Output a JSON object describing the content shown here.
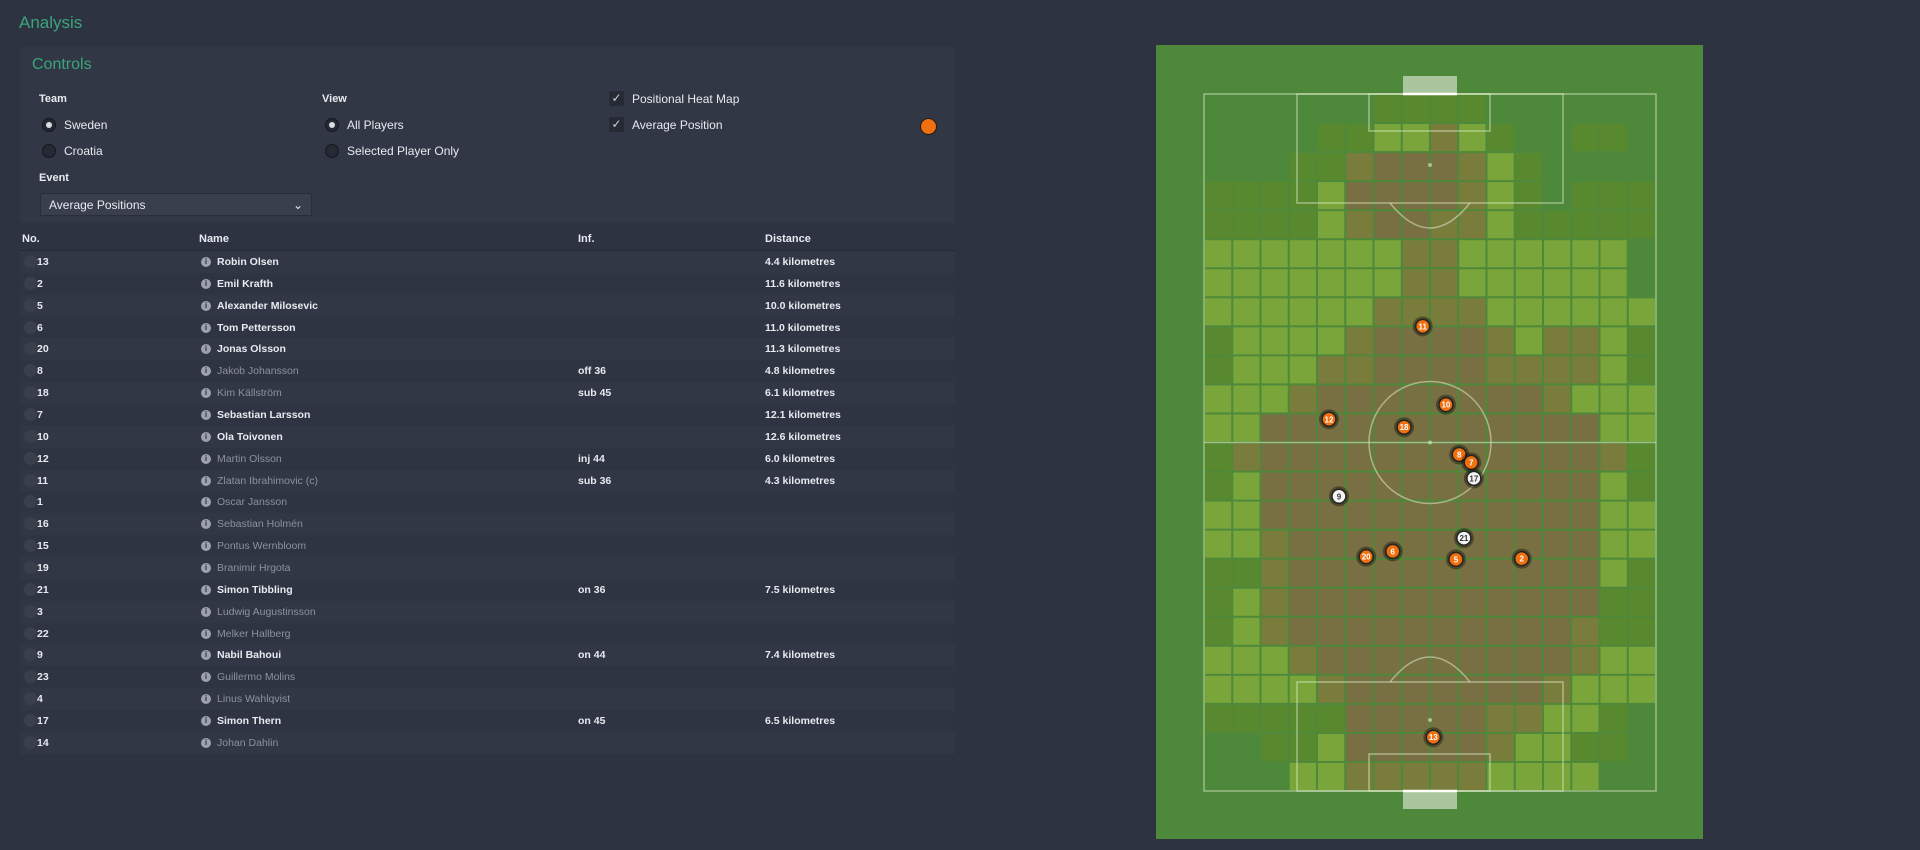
{
  "page": {
    "title": "Analysis"
  },
  "controls": {
    "title": "Controls",
    "team_label": "Team",
    "teams": [
      {
        "label": "Sweden",
        "selected": true
      },
      {
        "label": "Croatia",
        "selected": false
      }
    ],
    "view_label": "View",
    "views": [
      {
        "label": "All Players",
        "selected": true
      },
      {
        "label": "Selected Player Only",
        "selected": false
      }
    ],
    "options": [
      {
        "label": "Positional Heat Map",
        "checked": true
      },
      {
        "label": "Average Position",
        "checked": true
      }
    ],
    "event_label": "Event",
    "event_value": "Average Positions",
    "team_color": "#f07010"
  },
  "table": {
    "headers": {
      "no": "No.",
      "name": "Name",
      "inf": "Inf.",
      "distance": "Distance"
    },
    "rows": [
      {
        "no": "13",
        "name": "Robin Olsen",
        "inf": "",
        "distance": "4.4 kilometres",
        "active": true
      },
      {
        "no": "2",
        "name": "Emil Krafth",
        "inf": "",
        "distance": "11.6 kilometres",
        "active": true
      },
      {
        "no": "5",
        "name": "Alexander Milosevic",
        "inf": "",
        "distance": "10.0 kilometres",
        "active": true
      },
      {
        "no": "6",
        "name": "Tom Pettersson",
        "inf": "",
        "distance": "11.0 kilometres",
        "active": true
      },
      {
        "no": "20",
        "name": "Jonas Olsson",
        "inf": "",
        "distance": "11.3 kilometres",
        "active": true
      },
      {
        "no": "8",
        "name": "Jakob Johansson",
        "inf": "off 36",
        "distance": "4.8 kilometres",
        "active": false
      },
      {
        "no": "18",
        "name": "Kim Källström",
        "inf": "sub 45",
        "distance": "6.1 kilometres",
        "active": false
      },
      {
        "no": "7",
        "name": "Sebastian Larsson",
        "inf": "",
        "distance": "12.1 kilometres",
        "active": true
      },
      {
        "no": "10",
        "name": "Ola Toivonen",
        "inf": "",
        "distance": "12.6 kilometres",
        "active": true
      },
      {
        "no": "12",
        "name": "Martin Olsson",
        "inf": "inj 44",
        "distance": "6.0 kilometres",
        "active": false
      },
      {
        "no": "11",
        "name": "Zlatan Ibrahimovic (c)",
        "inf": "sub 36",
        "distance": "4.3 kilometres",
        "active": false
      },
      {
        "no": "1",
        "name": "Oscar Jansson",
        "inf": "",
        "distance": "",
        "active": false
      },
      {
        "no": "16",
        "name": "Sebastian Holmén",
        "inf": "",
        "distance": "",
        "active": false
      },
      {
        "no": "15",
        "name": "Pontus Wernbloom",
        "inf": "",
        "distance": "",
        "active": false
      },
      {
        "no": "19",
        "name": "Branimir Hrgota",
        "inf": "",
        "distance": "",
        "active": false
      },
      {
        "no": "21",
        "name": "Simon Tibbling",
        "inf": "on 36",
        "distance": "7.5 kilometres",
        "active": true
      },
      {
        "no": "3",
        "name": "Ludwig Augustinsson",
        "inf": "",
        "distance": "",
        "active": false
      },
      {
        "no": "22",
        "name": "Melker Hallberg",
        "inf": "",
        "distance": "",
        "active": false
      },
      {
        "no": "9",
        "name": "Nabil Bahoui",
        "inf": "on 44",
        "distance": "7.4 kilometres",
        "active": true
      },
      {
        "no": "23",
        "name": "Guillermo Molins",
        "inf": "",
        "distance": "",
        "active": false
      },
      {
        "no": "4",
        "name": "Linus Wahlqvist",
        "inf": "",
        "distance": "",
        "active": false
      },
      {
        "no": "17",
        "name": "Simon Thern",
        "inf": "on 45",
        "distance": "6.5 kilometres",
        "active": true
      },
      {
        "no": "14",
        "name": "Johan Dahlin",
        "inf": "",
        "distance": "",
        "active": false
      }
    ]
  },
  "pitch": {
    "colors": {
      "grass": "#4e883a",
      "marker_starter": "#f07010",
      "marker_sub": "#f4f4f4",
      "heat": [
        "transparent",
        "#5b8a2e",
        "#80a83c",
        "#7f7b3d",
        "#7d6d44"
      ]
    },
    "heatmap_levels": [
      [
        0,
        0,
        0,
        0,
        0,
        0,
        1,
        1,
        1,
        1,
        0,
        0,
        0,
        0,
        0,
        0
      ],
      [
        0,
        0,
        0,
        0,
        1,
        1,
        2,
        2,
        3,
        2,
        1,
        0,
        0,
        1,
        1,
        0
      ],
      [
        0,
        0,
        0,
        1,
        1,
        3,
        4,
        4,
        4,
        3,
        2,
        1,
        0,
        0,
        0,
        0
      ],
      [
        1,
        1,
        1,
        1,
        2,
        4,
        4,
        4,
        4,
        3,
        2,
        1,
        0,
        1,
        1,
        1
      ],
      [
        1,
        1,
        1,
        1,
        2,
        3,
        4,
        4,
        3,
        3,
        2,
        1,
        1,
        1,
        1,
        1
      ],
      [
        2,
        2,
        2,
        2,
        2,
        2,
        2,
        3,
        3,
        2,
        2,
        2,
        2,
        2,
        2,
        0
      ],
      [
        2,
        2,
        2,
        2,
        2,
        2,
        2,
        3,
        3,
        2,
        2,
        2,
        2,
        2,
        2,
        0
      ],
      [
        2,
        2,
        2,
        2,
        2,
        2,
        3,
        3,
        3,
        3,
        2,
        2,
        2,
        2,
        2,
        2
      ],
      [
        1,
        2,
        2,
        2,
        2,
        3,
        4,
        4,
        4,
        4,
        3,
        2,
        3,
        3,
        2,
        1
      ],
      [
        1,
        2,
        2,
        2,
        3,
        3,
        4,
        4,
        4,
        4,
        3,
        3,
        3,
        3,
        2,
        1
      ],
      [
        2,
        2,
        2,
        3,
        4,
        4,
        4,
        4,
        4,
        4,
        4,
        4,
        3,
        2,
        2,
        2
      ],
      [
        2,
        2,
        4,
        4,
        4,
        4,
        4,
        4,
        4,
        4,
        4,
        4,
        4,
        4,
        2,
        2
      ],
      [
        1,
        3,
        4,
        4,
        4,
        4,
        4,
        4,
        4,
        4,
        4,
        4,
        4,
        4,
        3,
        1
      ],
      [
        1,
        2,
        4,
        4,
        4,
        4,
        4,
        4,
        4,
        4,
        4,
        4,
        4,
        4,
        2,
        1
      ],
      [
        2,
        2,
        4,
        4,
        4,
        4,
        4,
        4,
        4,
        4,
        4,
        4,
        4,
        4,
        2,
        2
      ],
      [
        2,
        2,
        3,
        4,
        4,
        4,
        4,
        4,
        4,
        4,
        4,
        4,
        4,
        4,
        2,
        2
      ],
      [
        1,
        1,
        3,
        4,
        4,
        4,
        4,
        4,
        4,
        4,
        4,
        4,
        4,
        4,
        2,
        1
      ],
      [
        1,
        2,
        3,
        4,
        4,
        4,
        4,
        4,
        4,
        4,
        4,
        4,
        4,
        4,
        1,
        1
      ],
      [
        1,
        2,
        3,
        4,
        4,
        4,
        4,
        4,
        4,
        4,
        4,
        4,
        4,
        3,
        1,
        1
      ],
      [
        2,
        2,
        2,
        3,
        4,
        4,
        4,
        4,
        4,
        4,
        4,
        4,
        4,
        3,
        2,
        2
      ],
      [
        2,
        2,
        2,
        2,
        3,
        4,
        4,
        4,
        4,
        4,
        4,
        4,
        3,
        2,
        2,
        2
      ],
      [
        1,
        1,
        1,
        1,
        1,
        4,
        4,
        4,
        4,
        4,
        3,
        3,
        2,
        2,
        1,
        0
      ],
      [
        0,
        0,
        1,
        1,
        2,
        4,
        4,
        4,
        4,
        4,
        3,
        2,
        2,
        1,
        1,
        0
      ],
      [
        0,
        0,
        0,
        2,
        2,
        3,
        3,
        3,
        3,
        3,
        2,
        2,
        2,
        2,
        0,
        0
      ]
    ],
    "average_positions_m": [
      {
        "no": "11",
        "x": 32.9,
        "y": 35.0,
        "sub": false
      },
      {
        "no": "10",
        "x": 36.4,
        "y": 46.8,
        "sub": false
      },
      {
        "no": "12",
        "x": 18.8,
        "y": 49.0,
        "sub": false
      },
      {
        "no": "18",
        "x": 30.1,
        "y": 50.2,
        "sub": false
      },
      {
        "no": "8",
        "x": 38.4,
        "y": 54.3,
        "sub": false
      },
      {
        "no": "7",
        "x": 40.2,
        "y": 55.5,
        "sub": false
      },
      {
        "no": "17",
        "x": 40.6,
        "y": 57.9,
        "sub": true
      },
      {
        "no": "9",
        "x": 20.3,
        "y": 60.6,
        "sub": true
      },
      {
        "no": "21",
        "x": 39.1,
        "y": 66.9,
        "sub": true
      },
      {
        "no": "20",
        "x": 24.4,
        "y": 69.7,
        "sub": false
      },
      {
        "no": "6",
        "x": 28.4,
        "y": 68.9,
        "sub": false
      },
      {
        "no": "5",
        "x": 37.9,
        "y": 70.1,
        "sub": false
      },
      {
        "no": "2",
        "x": 47.8,
        "y": 70.0,
        "sub": false
      },
      {
        "no": "13",
        "x": 34.5,
        "y": 96.9,
        "sub": false
      }
    ]
  }
}
